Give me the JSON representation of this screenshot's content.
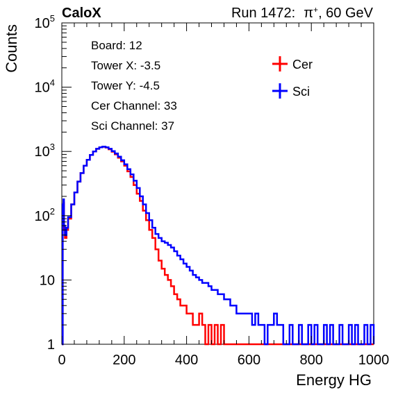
{
  "header": {
    "experiment": "CaloX",
    "run_label": "Run 1472:",
    "beam_particle": "π",
    "beam_charge": "+",
    "beam_energy": ", 60 GeV"
  },
  "info_box": {
    "lines": [
      "Board: 12",
      "Tower X: -3.5",
      "Tower Y: -4.5",
      "Cer Channel: 33",
      "Sci Channel: 37"
    ]
  },
  "colors": {
    "cer": "#ff0000",
    "sci": "#0000ff",
    "axis": "#000000"
  },
  "chart_data": {
    "type": "line",
    "drawstyle": "step-histogram",
    "xlabel": "Energy HG",
    "ylabel": "Counts",
    "xlim": [
      0,
      1000
    ],
    "ylim": [
      1,
      100000
    ],
    "ylog": true,
    "grid": false,
    "legend_position": "top-right",
    "x_ticks": [
      0,
      200,
      400,
      600,
      800,
      1000
    ],
    "y_ticks": [
      {
        "value": 1,
        "mantissa": "1",
        "exponent": ""
      },
      {
        "value": 10,
        "mantissa": "10",
        "exponent": ""
      },
      {
        "value": 100,
        "mantissa": "10",
        "exponent": "2"
      },
      {
        "value": 1000,
        "mantissa": "10",
        "exponent": "3"
      },
      {
        "value": 10000,
        "mantissa": "10",
        "exponent": "4"
      },
      {
        "value": 100000,
        "mantissa": "10",
        "exponent": "5"
      }
    ],
    "series": [
      {
        "name": "Cer",
        "color_key": "cer",
        "points": [
          [
            0,
            1
          ],
          [
            2,
            1
          ],
          [
            3,
            120
          ],
          [
            5,
            160
          ],
          [
            7,
            60
          ],
          [
            10,
            45
          ],
          [
            15,
            60
          ],
          [
            20,
            90
          ],
          [
            30,
            150
          ],
          [
            40,
            230
          ],
          [
            50,
            340
          ],
          [
            60,
            460
          ],
          [
            70,
            600
          ],
          [
            80,
            740
          ],
          [
            90,
            880
          ],
          [
            100,
            1000
          ],
          [
            110,
            1100
          ],
          [
            120,
            1160
          ],
          [
            130,
            1180
          ],
          [
            140,
            1150
          ],
          [
            150,
            1080
          ],
          [
            160,
            990
          ],
          [
            170,
            900
          ],
          [
            180,
            800
          ],
          [
            190,
            700
          ],
          [
            200,
            600
          ],
          [
            210,
            490
          ],
          [
            220,
            400
          ],
          [
            230,
            300
          ],
          [
            240,
            220
          ],
          [
            250,
            170
          ],
          [
            260,
            120
          ],
          [
            270,
            85
          ],
          [
            280,
            60
          ],
          [
            290,
            45
          ],
          [
            300,
            30
          ],
          [
            310,
            20
          ],
          [
            320,
            15
          ],
          [
            330,
            12
          ],
          [
            340,
            10
          ],
          [
            350,
            8
          ],
          [
            360,
            6
          ],
          [
            370,
            5
          ],
          [
            380,
            4
          ],
          [
            390,
            4
          ],
          [
            400,
            3
          ],
          [
            410,
            3
          ],
          [
            420,
            2
          ],
          [
            430,
            2
          ],
          [
            440,
            3
          ],
          [
            450,
            2
          ],
          [
            460,
            1
          ],
          [
            470,
            2
          ],
          [
            480,
            1
          ],
          [
            490,
            2
          ],
          [
            500,
            1
          ],
          [
            510,
            2
          ],
          [
            520,
            1
          ],
          [
            540,
            1
          ],
          [
            560,
            1
          ],
          [
            580,
            1
          ],
          [
            600,
            1
          ],
          [
            640,
            1
          ],
          [
            680,
            1
          ],
          [
            700,
            1
          ],
          [
            720,
            1
          ],
          [
            1000,
            1
          ]
        ]
      },
      {
        "name": "Sci",
        "color_key": "sci",
        "points": [
          [
            0,
            1
          ],
          [
            2,
            1
          ],
          [
            3,
            150
          ],
          [
            5,
            180
          ],
          [
            7,
            70
          ],
          [
            10,
            50
          ],
          [
            15,
            65
          ],
          [
            20,
            95
          ],
          [
            30,
            150
          ],
          [
            40,
            230
          ],
          [
            50,
            340
          ],
          [
            60,
            460
          ],
          [
            70,
            600
          ],
          [
            80,
            740
          ],
          [
            90,
            880
          ],
          [
            100,
            1000
          ],
          [
            110,
            1100
          ],
          [
            120,
            1160
          ],
          [
            130,
            1190
          ],
          [
            140,
            1160
          ],
          [
            150,
            1100
          ],
          [
            160,
            1010
          ],
          [
            170,
            930
          ],
          [
            180,
            830
          ],
          [
            190,
            730
          ],
          [
            200,
            630
          ],
          [
            210,
            530
          ],
          [
            220,
            440
          ],
          [
            230,
            350
          ],
          [
            240,
            270
          ],
          [
            250,
            200
          ],
          [
            260,
            150
          ],
          [
            270,
            110
          ],
          [
            280,
            85
          ],
          [
            290,
            65
          ],
          [
            300,
            52
          ],
          [
            310,
            45
          ],
          [
            320,
            40
          ],
          [
            330,
            38
          ],
          [
            340,
            35
          ],
          [
            350,
            32
          ],
          [
            360,
            28
          ],
          [
            370,
            24
          ],
          [
            380,
            21
          ],
          [
            390,
            18
          ],
          [
            400,
            16
          ],
          [
            410,
            14
          ],
          [
            420,
            12
          ],
          [
            430,
            11
          ],
          [
            440,
            10
          ],
          [
            450,
            9
          ],
          [
            460,
            9
          ],
          [
            470,
            8
          ],
          [
            480,
            7
          ],
          [
            490,
            7
          ],
          [
            500,
            6
          ],
          [
            510,
            6
          ],
          [
            520,
            5
          ],
          [
            530,
            5
          ],
          [
            540,
            4
          ],
          [
            550,
            4
          ],
          [
            560,
            3
          ],
          [
            570,
            3
          ],
          [
            580,
            3
          ],
          [
            590,
            3
          ],
          [
            600,
            3
          ],
          [
            610,
            2
          ],
          [
            620,
            3
          ],
          [
            630,
            2
          ],
          [
            640,
            2
          ],
          [
            650,
            1
          ],
          [
            660,
            2
          ],
          [
            670,
            2
          ],
          [
            680,
            3
          ],
          [
            690,
            2
          ],
          [
            700,
            2
          ],
          [
            710,
            1
          ],
          [
            720,
            1
          ],
          [
            730,
            2
          ],
          [
            740,
            1
          ],
          [
            750,
            1
          ],
          [
            760,
            2
          ],
          [
            770,
            1
          ],
          [
            780,
            1
          ],
          [
            790,
            2
          ],
          [
            800,
            1
          ],
          [
            810,
            2
          ],
          [
            820,
            1
          ],
          [
            830,
            1
          ],
          [
            840,
            2
          ],
          [
            850,
            1
          ],
          [
            860,
            2
          ],
          [
            870,
            1
          ],
          [
            880,
            1
          ],
          [
            890,
            2
          ],
          [
            900,
            1
          ],
          [
            910,
            1
          ],
          [
            920,
            2
          ],
          [
            930,
            1
          ],
          [
            940,
            2
          ],
          [
            950,
            1
          ],
          [
            960,
            1
          ],
          [
            970,
            2
          ],
          [
            980,
            1
          ],
          [
            990,
            2
          ],
          [
            1000,
            1
          ]
        ]
      }
    ]
  }
}
